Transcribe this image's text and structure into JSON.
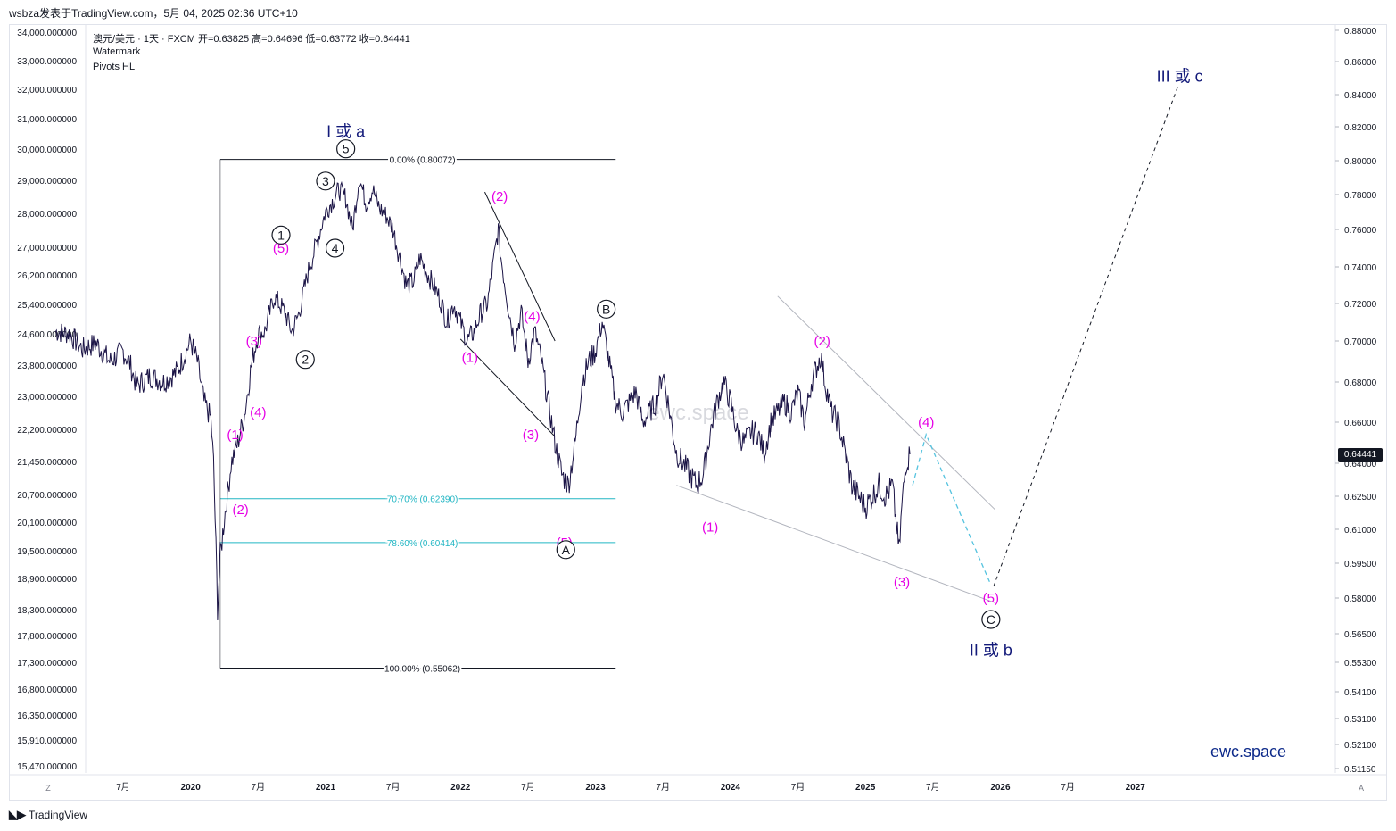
{
  "header": {
    "publisher": "wsbza发表于TradingView.com，5月 04, 2025 02:36 UTC+10"
  },
  "legend": {
    "line1": "澳元/美元 · 1天 · FXCM   开=0.63825   高=0.64696   低=0.63772   收=0.64441",
    "line2": "Watermark",
    "line3": "Pivots HL"
  },
  "footer": {
    "logo": "TradingView",
    "z_button": "Z",
    "a_button": "A"
  },
  "price_tag": "0.64441",
  "brand": "ewc.space",
  "watermark": "ewc.space",
  "colors": {
    "price": "#1b1446",
    "wave_magenta": "#e600e6",
    "wave_navy": "#131a7a",
    "fib_teal": "#22b6c4",
    "fib_black": "#131722",
    "channel_grey": "#b2b5be",
    "projection": "#55c3df",
    "projection_dark": "#131722"
  },
  "chart_data": {
    "type": "line",
    "symbol": "澳元/美元 · 1天 · FXCM",
    "ohlc": {
      "open": 0.63825,
      "high": 0.64696,
      "low": 0.63772,
      "close": 0.64441
    },
    "left_axis_ticks": [
      "34,000.000000",
      "33,000.000000",
      "32,000.000000",
      "31,000.000000",
      "30,000.000000",
      "29,000.000000",
      "28,000.000000",
      "27,000.000000",
      "26,200.000000",
      "25,400.000000",
      "24,600.000000",
      "23,800.000000",
      "23,000.000000",
      "22,200.000000",
      "21,450.000000",
      "20,700.000000",
      "20,100.000000",
      "19,500.000000",
      "18,900.000000",
      "18,300.000000",
      "17,800.000000",
      "17,300.000000",
      "16,800.000000",
      "16,350.000000",
      "15,910.000000",
      "15,470.000000"
    ],
    "right_axis_ticks": [
      0.88,
      0.86,
      0.84,
      0.82,
      0.8,
      0.78,
      0.76,
      0.74,
      0.72,
      0.7,
      0.68,
      0.66,
      0.64,
      0.625,
      0.61,
      0.595,
      0.58,
      0.565,
      0.553,
      0.541,
      0.531,
      0.521,
      0.5115
    ],
    "right_axis_labels": [
      "0.88000",
      "0.86000",
      "0.84000",
      "0.82000",
      "0.80000",
      "0.78000",
      "0.76000",
      "0.74000",
      "0.72000",
      "0.70000",
      "0.68000",
      "0.66000",
      "0.64000",
      "0.62500",
      "0.61000",
      "0.59500",
      "0.58000",
      "0.56500",
      "0.55300",
      "0.54100",
      "0.53100",
      "0.52100",
      "0.51150"
    ],
    "x_ticks": [
      {
        "label": "7月",
        "t": 2019.5
      },
      {
        "label": "2020",
        "t": 2020.0
      },
      {
        "label": "7月",
        "t": 2020.5
      },
      {
        "label": "2021",
        "t": 2021.0
      },
      {
        "label": "7月",
        "t": 2021.5
      },
      {
        "label": "2022",
        "t": 2022.0
      },
      {
        "label": "7月",
        "t": 2022.5
      },
      {
        "label": "2023",
        "t": 2023.0
      },
      {
        "label": "7月",
        "t": 2023.5
      },
      {
        "label": "2024",
        "t": 2024.0
      },
      {
        "label": "7月",
        "t": 2024.5
      },
      {
        "label": "2025",
        "t": 2025.0
      },
      {
        "label": "7月",
        "t": 2025.5
      },
      {
        "label": "2026",
        "t": 2026.0
      },
      {
        "label": "7月",
        "t": 2026.5
      },
      {
        "label": "2027",
        "t": 2027.0
      }
    ],
    "price_series": [
      [
        2019.0,
        0.705
      ],
      [
        2019.1,
        0.704
      ],
      [
        2019.2,
        0.696
      ],
      [
        2019.3,
        0.699
      ],
      [
        2019.4,
        0.69
      ],
      [
        2019.5,
        0.695
      ],
      [
        2019.55,
        0.689
      ],
      [
        2019.6,
        0.678
      ],
      [
        2019.7,
        0.683
      ],
      [
        2019.8,
        0.68
      ],
      [
        2019.9,
        0.685
      ],
      [
        2020.0,
        0.7
      ],
      [
        2020.05,
        0.69
      ],
      [
        2020.1,
        0.67
      ],
      [
        2020.15,
        0.662
      ],
      [
        2020.17,
        0.64
      ],
      [
        2020.2,
        0.576
      ],
      [
        2020.22,
        0.598
      ],
      [
        2020.25,
        0.615
      ],
      [
        2020.28,
        0.629
      ],
      [
        2020.3,
        0.64
      ],
      [
        2020.35,
        0.65
      ],
      [
        2020.4,
        0.664
      ],
      [
        2020.45,
        0.688
      ],
      [
        2020.5,
        0.704
      ],
      [
        2020.55,
        0.705
      ],
      [
        2020.62,
        0.724
      ],
      [
        2020.7,
        0.715
      ],
      [
        2020.75,
        0.705
      ],
      [
        2020.8,
        0.714
      ],
      [
        2020.88,
        0.74
      ],
      [
        2020.92,
        0.749
      ],
      [
        2021.0,
        0.77
      ],
      [
        2021.05,
        0.776
      ],
      [
        2021.1,
        0.783
      ],
      [
        2021.15,
        0.778
      ],
      [
        2021.2,
        0.76
      ],
      [
        2021.25,
        0.79
      ],
      [
        2021.3,
        0.775
      ],
      [
        2021.35,
        0.783
      ],
      [
        2021.4,
        0.772
      ],
      [
        2021.45,
        0.768
      ],
      [
        2021.5,
        0.76
      ],
      [
        2021.55,
        0.745
      ],
      [
        2021.6,
        0.73
      ],
      [
        2021.65,
        0.732
      ],
      [
        2021.7,
        0.745
      ],
      [
        2021.75,
        0.737
      ],
      [
        2021.8,
        0.73
      ],
      [
        2021.85,
        0.722
      ],
      [
        2021.9,
        0.71
      ],
      [
        2021.95,
        0.72
      ],
      [
        2022.0,
        0.71
      ],
      [
        2022.05,
        0.7
      ],
      [
        2022.1,
        0.705
      ],
      [
        2022.15,
        0.715
      ],
      [
        2022.2,
        0.72
      ],
      [
        2022.25,
        0.745
      ],
      [
        2022.28,
        0.76
      ],
      [
        2022.3,
        0.745
      ],
      [
        2022.35,
        0.72
      ],
      [
        2022.4,
        0.7
      ],
      [
        2022.45,
        0.715
      ],
      [
        2022.5,
        0.69
      ],
      [
        2022.55,
        0.705
      ],
      [
        2022.6,
        0.69
      ],
      [
        2022.65,
        0.67
      ],
      [
        2022.7,
        0.65
      ],
      [
        2022.75,
        0.635
      ],
      [
        2022.8,
        0.63
      ],
      [
        2022.85,
        0.65
      ],
      [
        2022.9,
        0.68
      ],
      [
        2022.95,
        0.69
      ],
      [
        2023.0,
        0.695
      ],
      [
        2023.05,
        0.71
      ],
      [
        2023.1,
        0.69
      ],
      [
        2023.15,
        0.67
      ],
      [
        2023.2,
        0.665
      ],
      [
        2023.25,
        0.67
      ],
      [
        2023.3,
        0.675
      ],
      [
        2023.35,
        0.66
      ],
      [
        2023.4,
        0.665
      ],
      [
        2023.45,
        0.67
      ],
      [
        2023.5,
        0.685
      ],
      [
        2023.55,
        0.665
      ],
      [
        2023.6,
        0.645
      ],
      [
        2023.65,
        0.64
      ],
      [
        2023.7,
        0.635
      ],
      [
        2023.75,
        0.63
      ],
      [
        2023.8,
        0.635
      ],
      [
        2023.85,
        0.655
      ],
      [
        2023.9,
        0.67
      ],
      [
        2023.95,
        0.68
      ],
      [
        2024.0,
        0.67
      ],
      [
        2024.05,
        0.655
      ],
      [
        2024.1,
        0.65
      ],
      [
        2024.15,
        0.655
      ],
      [
        2024.2,
        0.655
      ],
      [
        2024.25,
        0.645
      ],
      [
        2024.3,
        0.66
      ],
      [
        2024.35,
        0.665
      ],
      [
        2024.4,
        0.67
      ],
      [
        2024.45,
        0.665
      ],
      [
        2024.5,
        0.675
      ],
      [
        2024.55,
        0.66
      ],
      [
        2024.6,
        0.68
      ],
      [
        2024.67,
        0.693
      ],
      [
        2024.7,
        0.68
      ],
      [
        2024.75,
        0.665
      ],
      [
        2024.8,
        0.66
      ],
      [
        2024.85,
        0.645
      ],
      [
        2024.9,
        0.63
      ],
      [
        2024.95,
        0.625
      ],
      [
        2025.0,
        0.62
      ],
      [
        2025.05,
        0.625
      ],
      [
        2025.1,
        0.63
      ],
      [
        2025.15,
        0.625
      ],
      [
        2025.2,
        0.63
      ],
      [
        2025.25,
        0.6
      ],
      [
        2025.27,
        0.62
      ],
      [
        2025.3,
        0.64
      ],
      [
        2025.33,
        0.6444
      ]
    ],
    "fibonacci": [
      {
        "label": "0.00% (0.80072)",
        "price": 0.80072,
        "t_start": 2020.22,
        "t_end": 2023.15,
        "color": "#131722"
      },
      {
        "label": "70.70% (0.62390)",
        "price": 0.6239,
        "t_start": 2020.22,
        "t_end": 2023.15,
        "color": "#22b6c4"
      },
      {
        "label": "78.60% (0.60414)",
        "price": 0.60414,
        "t_start": 2020.22,
        "t_end": 2023.15,
        "color": "#22b6c4"
      },
      {
        "label": "100.00% (0.55062)",
        "price": 0.55062,
        "t_start": 2020.22,
        "t_end": 2023.15,
        "color": "#131722"
      }
    ],
    "annotations_magenta": [
      {
        "text": "(1)",
        "t": 2020.33,
        "price": 0.654
      },
      {
        "text": "(2)",
        "t": 2020.37,
        "price": 0.619
      },
      {
        "text": "(3)",
        "t": 2020.47,
        "price": 0.7
      },
      {
        "text": "(4)",
        "t": 2020.5,
        "price": 0.665
      },
      {
        "text": "(5)",
        "t": 2020.67,
        "price": 0.75
      },
      {
        "text": "(2)",
        "t": 2022.29,
        "price": 0.779
      },
      {
        "text": "(4)",
        "t": 2022.53,
        "price": 0.713
      },
      {
        "text": "(1)",
        "t": 2022.07,
        "price": 0.692
      },
      {
        "text": "(3)",
        "t": 2022.52,
        "price": 0.654
      },
      {
        "text": "(5)",
        "t": 2022.77,
        "price": 0.604
      },
      {
        "text": "(1)",
        "t": 2023.85,
        "price": 0.611
      },
      {
        "text": "(2)",
        "t": 2024.68,
        "price": 0.7
      },
      {
        "text": "(3)",
        "t": 2025.27,
        "price": 0.587
      },
      {
        "text": "(4)",
        "t": 2025.45,
        "price": 0.66
      },
      {
        "text": "(5)",
        "t": 2025.93,
        "price": 0.58
      }
    ],
    "annotations_circled": [
      {
        "text": "1",
        "t": 2020.67,
        "price": 0.757
      },
      {
        "text": "2",
        "t": 2020.85,
        "price": 0.691
      },
      {
        "text": "3",
        "t": 2021.0,
        "price": 0.788
      },
      {
        "text": "4",
        "t": 2021.07,
        "price": 0.75
      },
      {
        "text": "5",
        "t": 2021.15,
        "price": 0.807
      },
      {
        "text": "A",
        "t": 2022.78,
        "price": 0.601
      },
      {
        "text": "B",
        "t": 2023.08,
        "price": 0.717
      },
      {
        "text": "C",
        "t": 2025.93,
        "price": 0.571
      }
    ],
    "annotations_navy": [
      {
        "text": "I 或 a",
        "t": 2021.15,
        "price": 0.817
      },
      {
        "text": "II 或 b",
        "t": 2025.93,
        "price": 0.558
      },
      {
        "text": "III 或 c",
        "t": 2027.33,
        "price": 0.851
      }
    ],
    "trendlines": [
      {
        "t1": 2022.18,
        "p1": 0.7815,
        "t2": 2022.7,
        "p2": 0.7,
        "color": "#131722"
      },
      {
        "t1": 2022.0,
        "p1": 0.701,
        "t2": 2022.7,
        "p2": 0.653,
        "color": "#131722"
      },
      {
        "t1": 2024.35,
        "p1": 0.724,
        "t2": 2025.96,
        "p2": 0.619,
        "color": "#b2b5be"
      },
      {
        "t1": 2023.6,
        "p1": 0.63,
        "t2": 2025.96,
        "p2": 0.578,
        "color": "#b2b5be"
      }
    ],
    "projection_path": [
      [
        2025.35,
        0.63
      ],
      [
        2025.45,
        0.654
      ],
      [
        2025.92,
        0.587
      ]
    ],
    "projection_path_dark": [
      [
        2025.95,
        0.585
      ],
      [
        2027.32,
        0.846
      ]
    ]
  }
}
